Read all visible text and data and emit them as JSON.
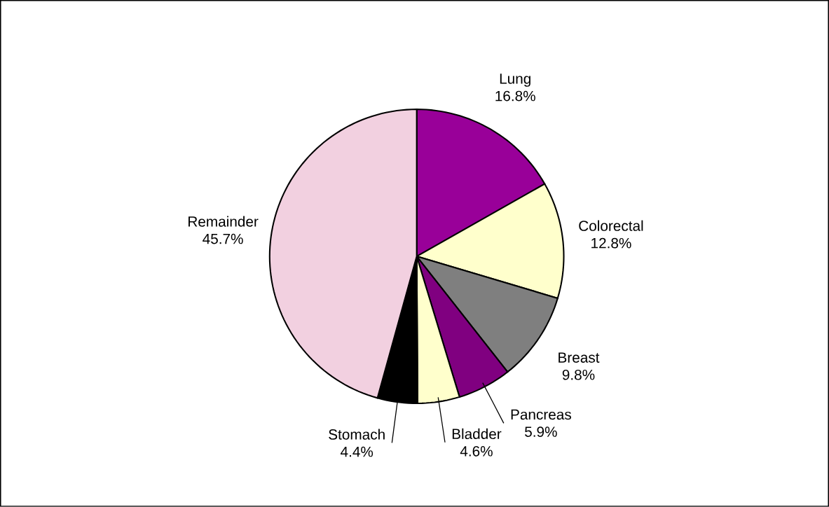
{
  "chart_data": {
    "type": "pie",
    "categories": [
      "Lung",
      "Colorectal",
      "Breast",
      "Pancreas",
      "Bladder",
      "Stomach",
      "Remainder"
    ],
    "values": [
      16.8,
      12.8,
      9.8,
      5.9,
      4.6,
      4.4,
      45.7
    ],
    "value_labels": [
      "16.8%",
      "12.8%",
      "9.8%",
      "5.9%",
      "4.6%",
      "4.4%",
      "45.7%"
    ],
    "colors": [
      "#990099",
      "#ffffcc",
      "#7f7f7f",
      "#800080",
      "#ffffcc",
      "#000000",
      "#f2d0e0"
    ]
  }
}
